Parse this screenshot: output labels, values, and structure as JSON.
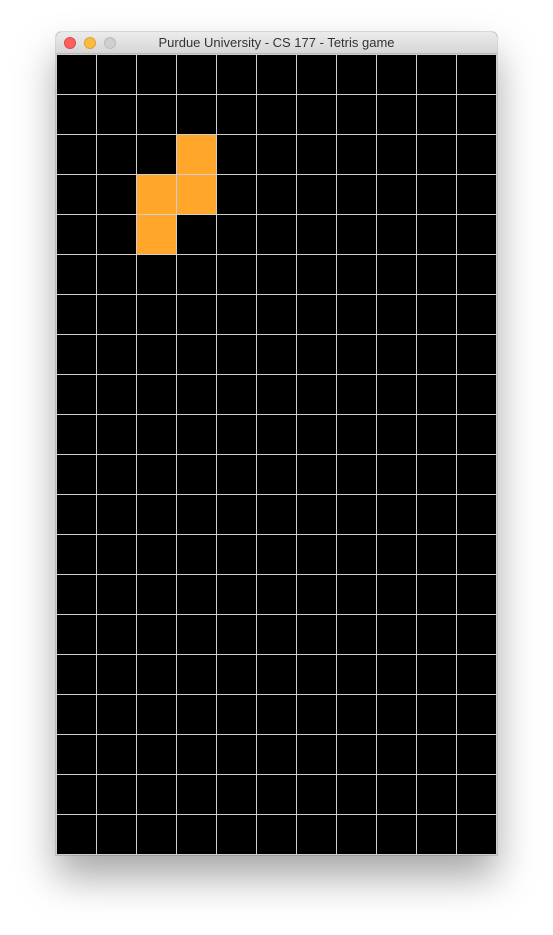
{
  "window": {
    "title": "Purdue University - CS 177 - Tetris game",
    "controls": [
      "close",
      "minimize",
      "zoom"
    ]
  },
  "board": {
    "columns": 11,
    "rows": 20,
    "background_color": "#000000",
    "grid_line_color": "#cfcfcf",
    "piece_color": "#ffa62b",
    "active_piece": {
      "shape": "S",
      "cells": [
        {
          "col": 3,
          "row": 2
        },
        {
          "col": 2,
          "row": 3
        },
        {
          "col": 3,
          "row": 3
        },
        {
          "col": 2,
          "row": 4
        }
      ]
    }
  }
}
